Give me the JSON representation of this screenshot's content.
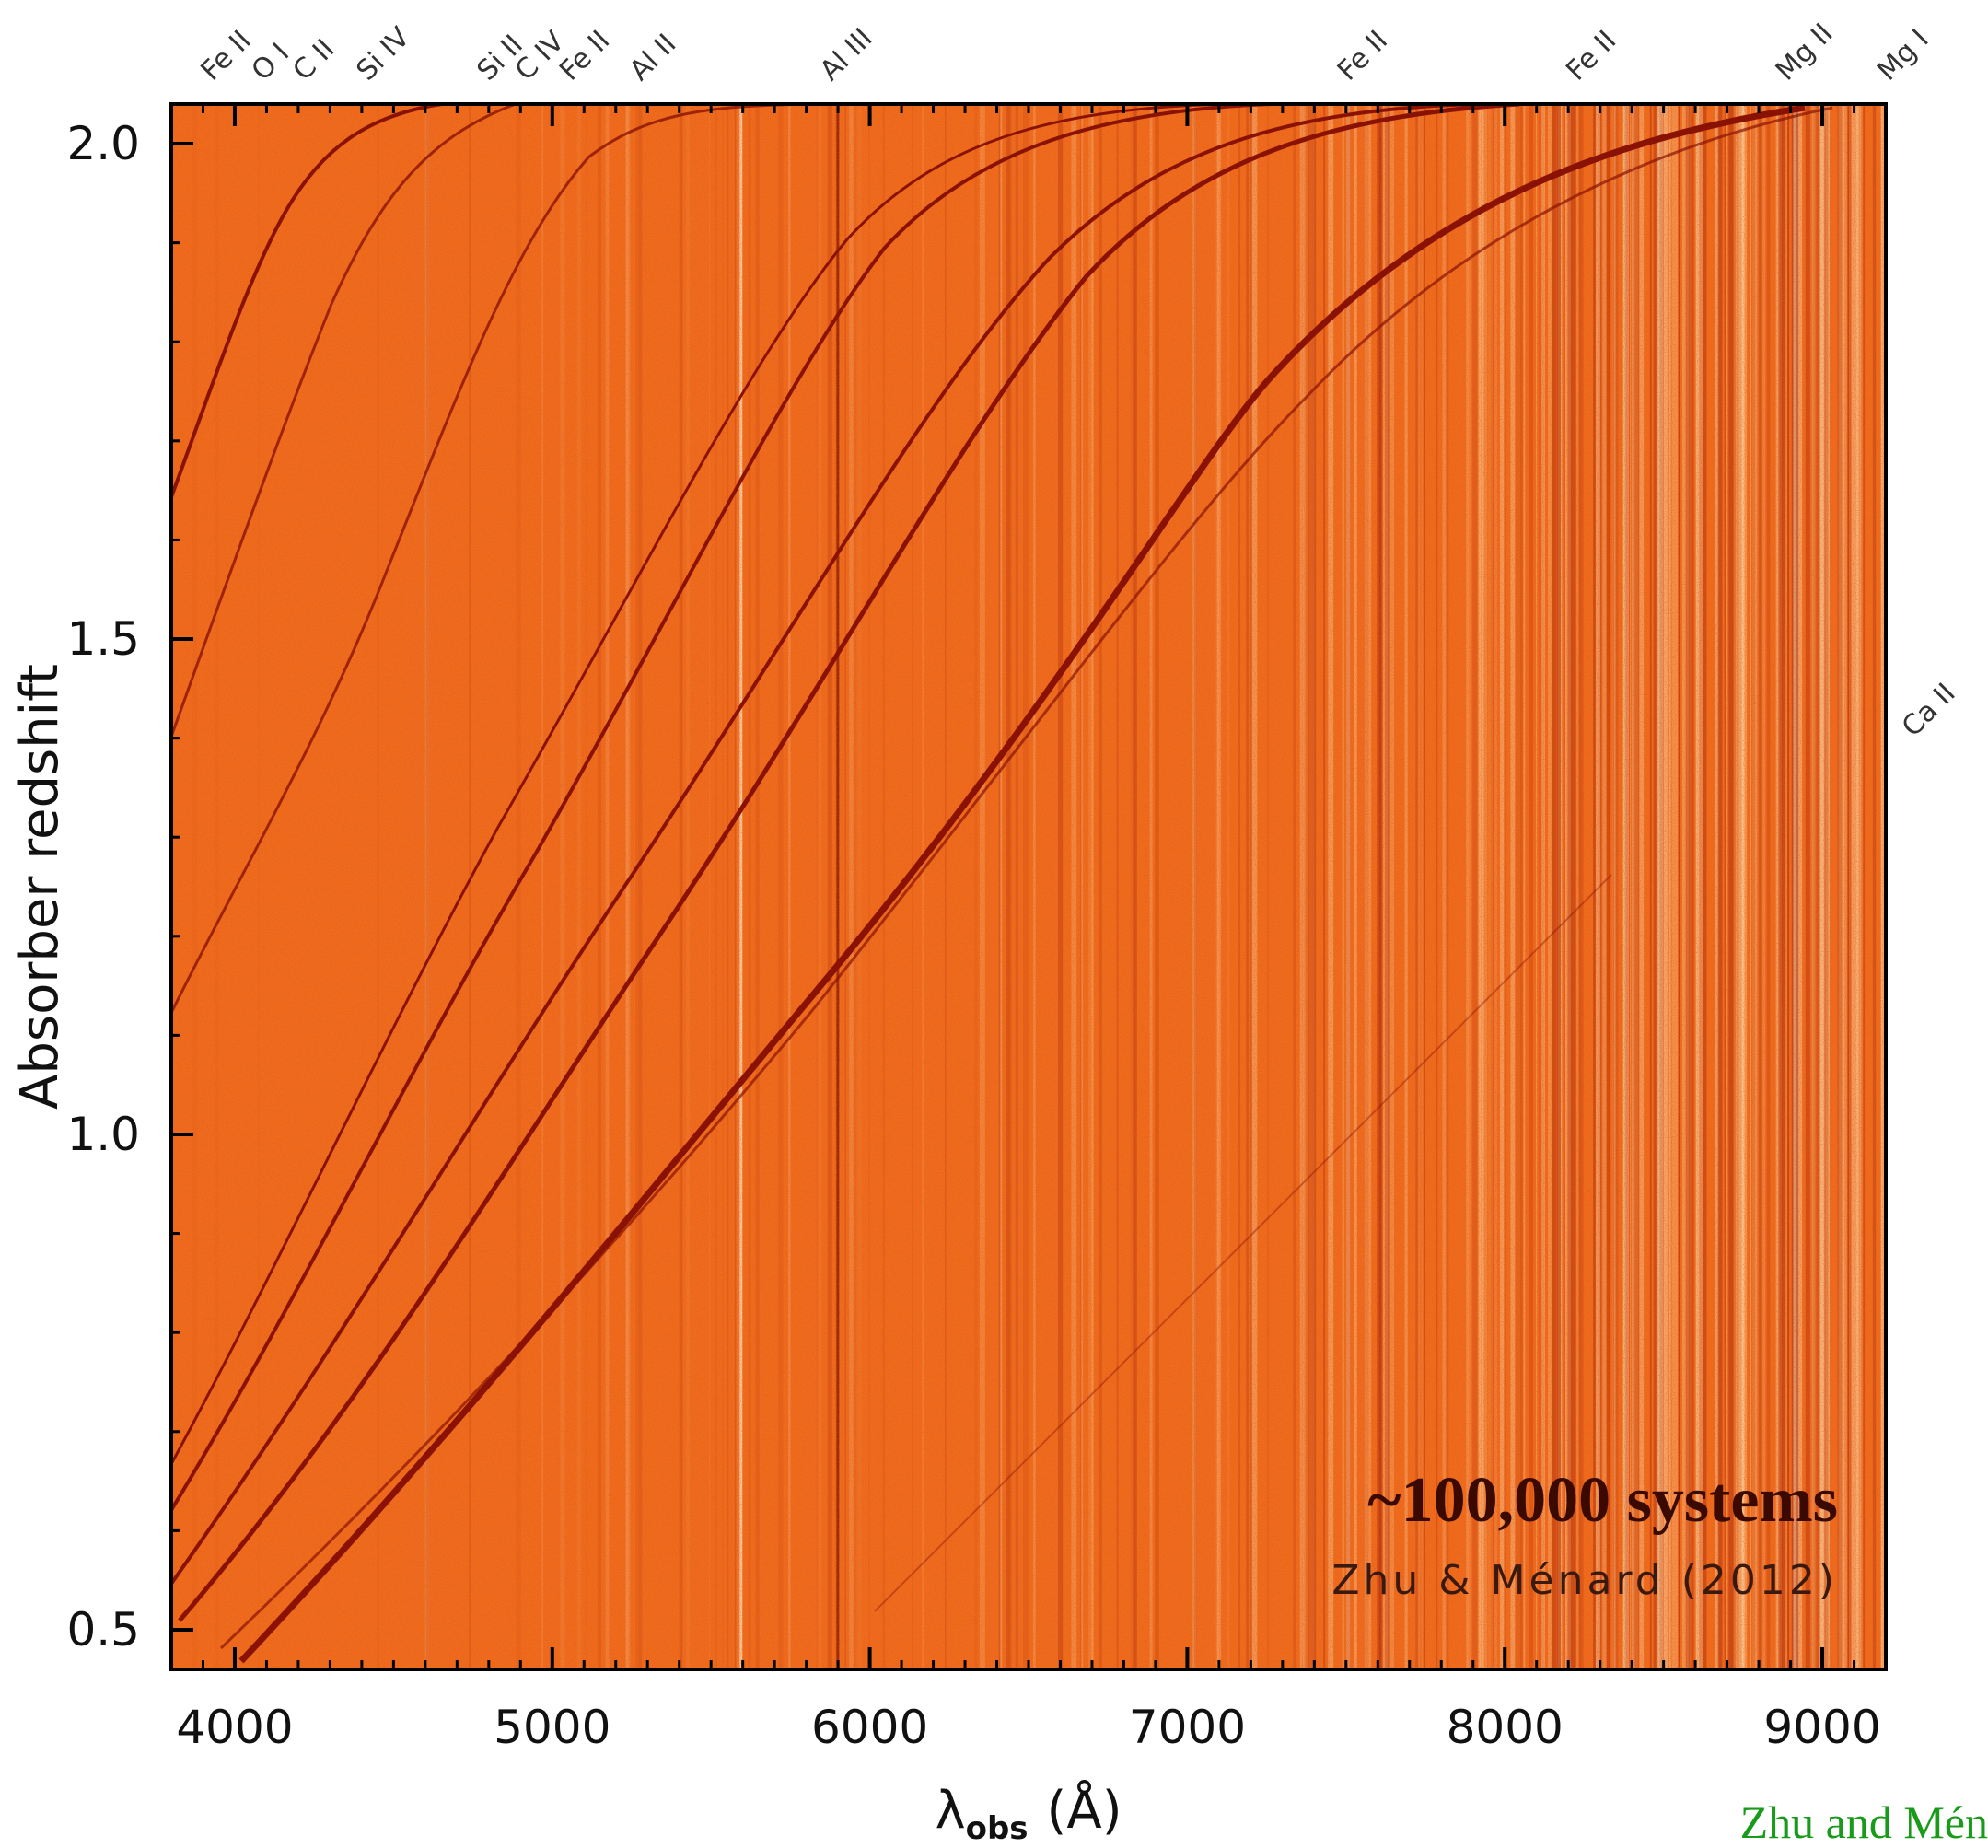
{
  "chart_data": {
    "type": "density-map",
    "xlabel": {
      "symbol": "λ",
      "subscript": "obs",
      "unit": "(Å)"
    },
    "ylabel": "Absorber redshift",
    "xlim": [
      3800,
      9200
    ],
    "xticks": [
      4000,
      5000,
      6000,
      7000,
      8000,
      9000
    ],
    "ylim": [
      0.46,
      2.04
    ],
    "yticks": [
      0.5,
      {
        "value": 1,
        "label": "1.0"
      },
      1.5,
      {
        "value": 2,
        "label": "2.0"
      }
    ],
    "color": "#f26a1b",
    "top_lines": [
      {
        "text": "Fe II",
        "x": 3970
      },
      {
        "text": "O I",
        "x": 4130
      },
      {
        "text": "C II",
        "x": 4260
      },
      {
        "text": "Si IV",
        "x": 4460
      },
      {
        "text": "Si II",
        "x": 4840
      },
      {
        "text": "C IV",
        "x": 4960
      },
      {
        "text": "Fe II",
        "x": 5100
      },
      {
        "text": "Al II",
        "x": 5320
      },
      {
        "text": "Al III",
        "x": 5920
      },
      {
        "text": "Fe II",
        "x": 7550
      },
      {
        "text": "Fe II",
        "x": 8270
      },
      {
        "text": "Mg II",
        "x": 8930
      },
      {
        "text": "Mg I",
        "x": 9250
      }
    ],
    "right_lines": [
      {
        "text": "Ca II",
        "y": 1.4
      }
    ],
    "annotations": [
      "~100,000 systems",
      "Zhu & Ménard (2012)"
    ],
    "credit": "Zhu and Mén"
  }
}
